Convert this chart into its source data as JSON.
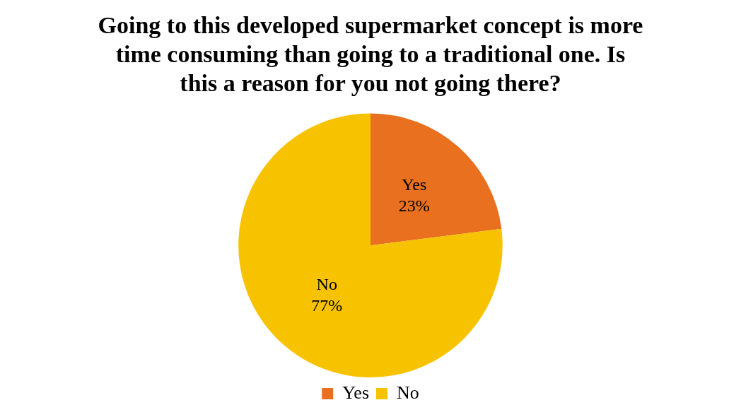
{
  "chart_data": {
    "type": "pie",
    "title": "Going to this developed supermarket concept is more time consuming than going to a traditional one. Is this a reason for you not going there?",
    "categories": [
      "Yes",
      "No"
    ],
    "values": [
      23,
      77
    ],
    "colors": [
      "#e8701e",
      "#f7c200"
    ],
    "value_labels": [
      "23%",
      "77%"
    ],
    "legend": "bottom"
  }
}
